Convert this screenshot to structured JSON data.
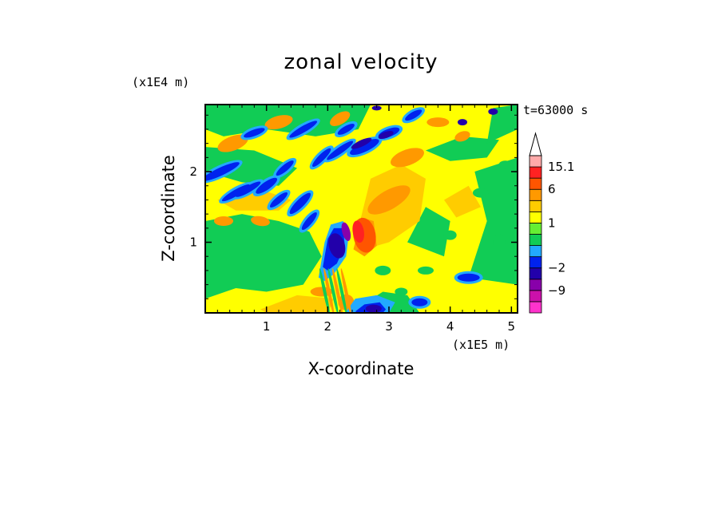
{
  "chart_data": {
    "type": "heatmap",
    "title": "zonal velocity",
    "xlabel": "X-coordinate",
    "ylabel": "Z-coordinate",
    "x_unit_label": "(x1E5 m)",
    "y_unit_label": "(x1E4 m)",
    "time_label": "t=63000 s",
    "xlim": [
      0,
      5.1
    ],
    "ylim": [
      0,
      2.95
    ],
    "x_ticks": [
      "1",
      "2",
      "3",
      "4",
      "5"
    ],
    "y_ticks": [
      "1",
      "2"
    ],
    "colorbar": {
      "levels": [
        -16,
        -12.5,
        -9,
        -5.5,
        -2,
        -1,
        0,
        0.5,
        1,
        1.5,
        2,
        6,
        10,
        15.1
      ],
      "colors": [
        "#ff33cc",
        "#cc11aa",
        "#8800aa",
        "#2200aa",
        "#0022ee",
        "#22aaff",
        "#11cc55",
        "#66ee33",
        "#ffff00",
        "#ffcc00",
        "#ff9900",
        "#ff5500",
        "#ff2222",
        "#ffaaaa"
      ],
      "labels": [
        "15.1",
        "6",
        "1",
        "−2",
        "−9"
      ],
      "extend": "max"
    }
  }
}
